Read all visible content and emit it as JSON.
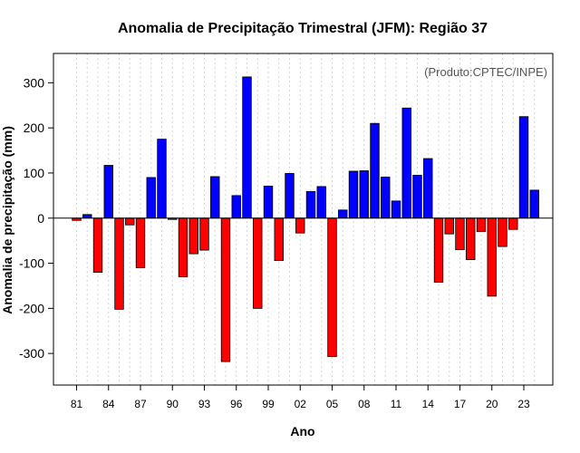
{
  "chart_data": {
    "type": "bar",
    "title": "Anomalia de Precipitação Trimestral (JFM): Região 37",
    "xlabel": "Ano",
    "ylabel": "Anomalia de precipitação (mm)",
    "annotation": "(Produto:CPTEC/INPE)",
    "ylim": [
      -370,
      365
    ],
    "yticks": [
      -300,
      -200,
      -100,
      0,
      100,
      200,
      300
    ],
    "ytick_labels": [
      "-300",
      "-200",
      "-100",
      "0",
      "100",
      "200",
      "300"
    ],
    "xtick_labels": [
      "81",
      "84",
      "87",
      "90",
      "93",
      "96",
      "99",
      "02",
      "05",
      "08",
      "11",
      "14",
      "17",
      "20",
      "23"
    ],
    "xtick_every": 3,
    "grid": "vertical dotted",
    "colors": {
      "positive": "#0000ff",
      "negative": "#ff0000",
      "edge": "#000000",
      "grid": "#d3d3d3"
    },
    "categories": [
      "1981",
      "1982",
      "1983",
      "1984",
      "1985",
      "1986",
      "1987",
      "1988",
      "1989",
      "1990",
      "1991",
      "1992",
      "1993",
      "1994",
      "1995",
      "1996",
      "1997",
      "1998",
      "1999",
      "2000",
      "2001",
      "2002",
      "2003",
      "2004",
      "2005",
      "2006",
      "2007",
      "2008",
      "2009",
      "2010",
      "2011",
      "2012",
      "2013",
      "2014",
      "2015",
      "2016",
      "2017",
      "2018",
      "2019",
      "2020",
      "2021",
      "2022",
      "2023",
      "2024"
    ],
    "values": [
      -5,
      8,
      -120,
      117,
      -202,
      -15,
      -110,
      90,
      175,
      -3,
      -130,
      -79,
      -71,
      92,
      -318,
      50,
      313,
      -200,
      71,
      -94,
      99,
      -33,
      59,
      70,
      -307,
      18,
      104,
      105,
      210,
      91,
      38,
      244,
      95,
      132,
      -142,
      -35,
      -70,
      -92,
      -30,
      -173,
      -63,
      -25,
      225,
      62
    ]
  }
}
